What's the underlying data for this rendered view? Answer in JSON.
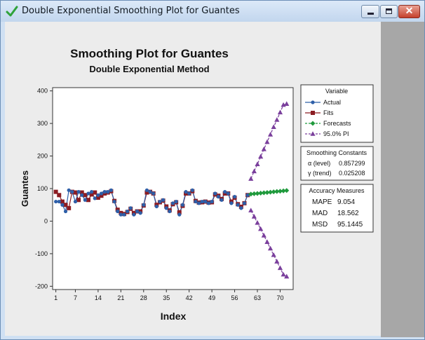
{
  "window": {
    "title": "Double Exponential Smoothing Plot for Guantes",
    "buttons": {
      "close": "✕"
    }
  },
  "chart_data": {
    "type": "line",
    "title": "Smoothing Plot for Guantes",
    "subtitle": "Double Exponential Method",
    "xlabel": "Index",
    "ylabel": "Guantes",
    "xlim": [
      0,
      74
    ],
    "ylim": [
      -210,
      410
    ],
    "x_ticks": [
      1,
      7,
      14,
      21,
      28,
      35,
      42,
      49,
      56,
      63,
      70
    ],
    "y_ticks": [
      -200,
      -100,
      0,
      100,
      200,
      300,
      400
    ],
    "legend_title": "Variable",
    "series": [
      {
        "name": "Actual",
        "color": "#2e5fa8",
        "marker": "circle",
        "x": [
          1,
          2,
          3,
          4,
          5,
          6,
          7,
          8,
          9,
          10,
          11,
          12,
          13,
          14,
          15,
          16,
          17,
          18,
          19,
          20,
          21,
          22,
          23,
          24,
          25,
          26,
          27,
          28,
          29,
          30,
          31,
          32,
          33,
          34,
          35,
          36,
          37,
          38,
          39,
          40,
          41,
          42,
          43,
          44,
          45,
          46,
          47,
          48,
          49,
          50,
          51,
          52,
          53,
          54,
          55,
          56,
          57,
          58,
          59,
          60
        ],
        "values": [
          60,
          60,
          50,
          30,
          95,
          90,
          60,
          90,
          80,
          65,
          85,
          90,
          70,
          80,
          85,
          90,
          90,
          95,
          60,
          30,
          20,
          20,
          30,
          40,
          20,
          30,
          25,
          50,
          95,
          90,
          85,
          45,
          60,
          65,
          40,
          30,
          55,
          60,
          20,
          50,
          90,
          85,
          95,
          60,
          55,
          60,
          60,
          55,
          60,
          85,
          75,
          65,
          90,
          85,
          55,
          75,
          50,
          40,
          55,
          80
        ]
      },
      {
        "name": "Fits",
        "color": "#8b1c22",
        "marker": "square",
        "x": [
          1,
          2,
          3,
          4,
          5,
          6,
          7,
          8,
          9,
          10,
          11,
          12,
          13,
          14,
          15,
          16,
          17,
          18,
          19,
          20,
          21,
          22,
          23,
          24,
          25,
          26,
          27,
          28,
          29,
          30,
          31,
          32,
          33,
          34,
          35,
          36,
          37,
          38,
          39,
          40,
          41,
          42,
          43,
          44,
          45,
          46,
          47,
          48,
          49,
          50,
          51,
          52,
          53,
          54,
          55,
          56,
          57,
          58,
          59,
          60
        ],
        "values": [
          90,
          80,
          60,
          50,
          40,
          90,
          88,
          65,
          88,
          80,
          65,
          82,
          88,
          72,
          78,
          85,
          88,
          92,
          62,
          35,
          25,
          22,
          28,
          38,
          25,
          30,
          30,
          48,
          88,
          90,
          85,
          50,
          58,
          63,
          45,
          33,
          52,
          58,
          27,
          47,
          85,
          85,
          92,
          62,
          57,
          58,
          60,
          57,
          58,
          82,
          78,
          68,
          85,
          85,
          60,
          72,
          52,
          44,
          55,
          80
        ]
      },
      {
        "name": "Forecasts",
        "color": "#1f9a3c",
        "marker": "diamond",
        "x": [
          61,
          62,
          63,
          64,
          65,
          66,
          67,
          68,
          69,
          70,
          71,
          72
        ],
        "values": [
          83,
          84,
          85,
          86,
          87,
          88,
          89,
          90,
          91,
          92,
          93,
          94
        ]
      },
      {
        "name": "95.0% PI",
        "color": "#7a3f9c",
        "marker": "triangle",
        "upper": [
          130,
          153,
          175,
          198,
          221,
          243,
          266,
          289,
          311,
          334,
          357,
          360
        ],
        "lower": [
          33,
          14,
          -5,
          -24,
          -44,
          -64,
          -84,
          -104,
          -124,
          -144,
          -164,
          -170
        ]
      }
    ],
    "smoothing_constants": {
      "title": "Smoothing Constants",
      "rows": [
        {
          "label": "α (level)",
          "value": "0.857299"
        },
        {
          "label": "γ (trend)",
          "value": "0.025208"
        }
      ]
    },
    "accuracy_measures": {
      "title": "Accuracy Measures",
      "rows": [
        {
          "label": "MAPE",
          "value": "9.054"
        },
        {
          "label": "MAD",
          "value": "18.562"
        },
        {
          "label": "MSD",
          "value": "95.1445"
        }
      ]
    },
    "grid": false,
    "legend_position": "right"
  }
}
